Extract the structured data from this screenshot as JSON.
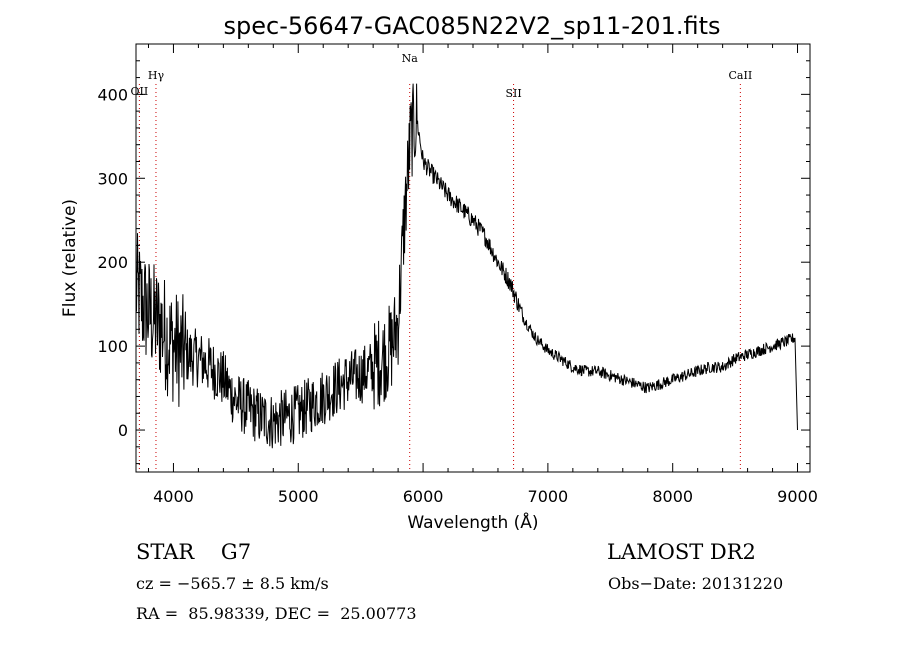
{
  "chart_data": {
    "type": "line",
    "title": "spec-56647-GAC085N22V2_sp11-201.fits",
    "xlabel": "Wavelength (Å)",
    "ylabel": "Flux (relative)",
    "xlim": [
      3700,
      9100
    ],
    "ylim": [
      -50,
      460
    ],
    "x_ticks": [
      4000,
      5000,
      6000,
      7000,
      8000,
      9000
    ],
    "y_ticks": [
      0,
      100,
      200,
      300,
      400
    ],
    "grid": false,
    "line_color": "#000000",
    "marker_color": "#cc0000",
    "lines": [
      {
        "label": "OII",
        "wavelength": 3727
      },
      {
        "label": "Hγ",
        "wavelength": 3860
      },
      {
        "label": "Na",
        "wavelength": 5893
      },
      {
        "label": "SII",
        "wavelength": 6725
      },
      {
        "label": "CaII",
        "wavelength": 8542
      }
    ],
    "series": [
      {
        "x": [
          3700,
          3750,
          3800,
          3850,
          3900,
          3950,
          4000,
          4100,
          4200,
          4300,
          4400,
          4500,
          4600,
          4700,
          4800,
          4900,
          5000,
          5100,
          5200,
          5300,
          5400,
          5500,
          5600,
          5700,
          5750,
          5800,
          5850,
          5900,
          5950,
          6000,
          6100,
          6200,
          6300,
          6400,
          6500,
          6600,
          6700,
          6800,
          6900,
          7000,
          7100,
          7200,
          7300,
          7400,
          7500,
          7600,
          7700,
          7800,
          7900,
          8000,
          8100,
          8200,
          8300,
          8400,
          8500,
          8600,
          8700,
          8800,
          8900,
          8980,
          9000
        ],
        "y": [
          170,
          150,
          140,
          130,
          125,
          110,
          100,
          90,
          85,
          75,
          60,
          35,
          25,
          15,
          10,
          15,
          20,
          30,
          40,
          50,
          60,
          65,
          75,
          90,
          100,
          130,
          250,
          350,
          370,
          320,
          300,
          280,
          265,
          250,
          230,
          200,
          175,
          135,
          110,
          95,
          85,
          75,
          70,
          70,
          65,
          60,
          55,
          50,
          55,
          60,
          65,
          70,
          75,
          75,
          85,
          90,
          95,
          100,
          105,
          110,
          0
        ]
      }
    ]
  },
  "info": {
    "object": "STAR    G7",
    "survey": "LAMOST DR2",
    "redshift": "cz = −565.7 ± 8.5 km/s",
    "obs_date": "Obs−Date: 20131220",
    "coords": "RA =  85.98339, DEC =  25.00773"
  }
}
